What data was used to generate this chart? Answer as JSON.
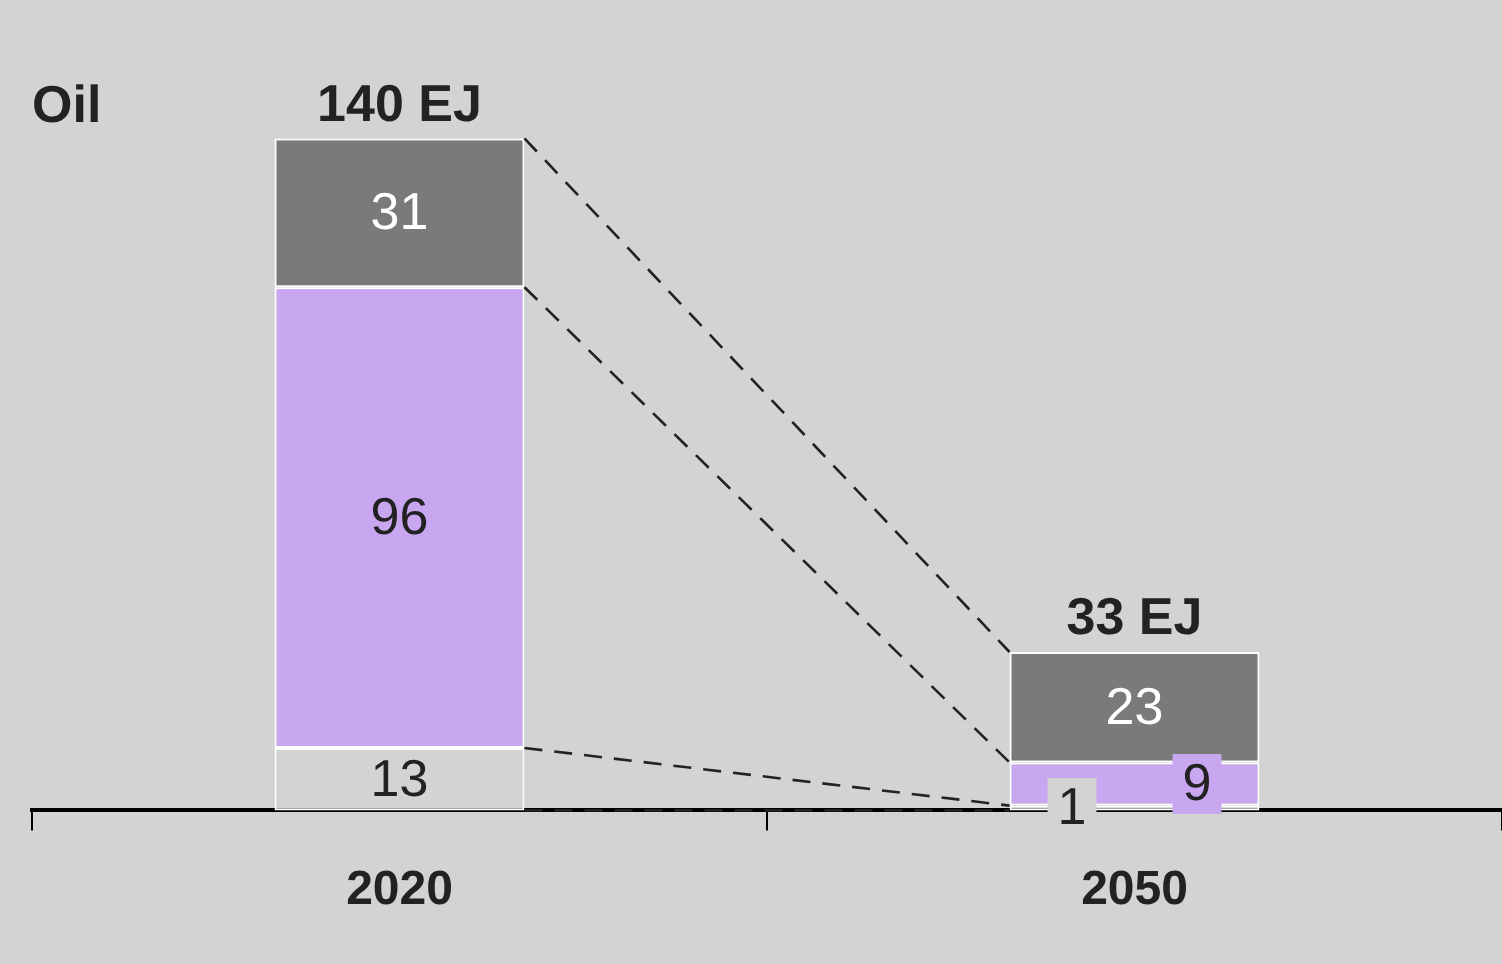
{
  "chart_data": {
    "type": "bar",
    "title": "Oil",
    "stacked": true,
    "data_labels": true,
    "legend": false,
    "grid": false,
    "categories": [
      "2020",
      "2050"
    ],
    "series": [
      {
        "color": "#d3d3d3",
        "values": [
          13,
          1
        ]
      },
      {
        "color": "#c8a6f0",
        "values": [
          96,
          9
        ]
      },
      {
        "color": "#7a7a7a",
        "values": [
          31,
          23
        ]
      }
    ],
    "totals": [
      "140 EJ",
      "33 EJ"
    ]
  }
}
